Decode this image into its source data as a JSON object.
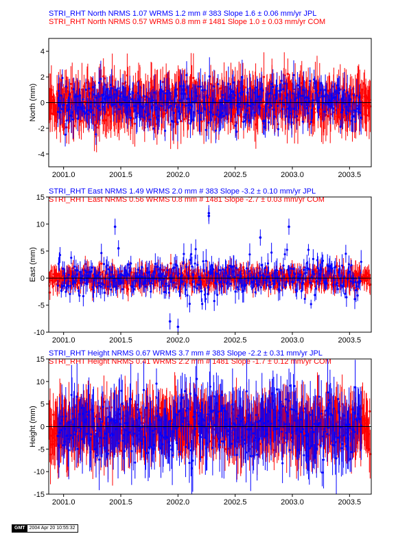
{
  "colors": {
    "jpl": "#0000ff",
    "com": "#ff0000",
    "axis": "#000000"
  },
  "footer": {
    "logo": "GMT",
    "timestamp": "2004 Apr 20 10:55:32"
  },
  "chart_data": [
    {
      "type": "scatter",
      "component": "north",
      "ylabel": "North (mm)",
      "xlim": [
        2000.87,
        2003.69
      ],
      "ylim": [
        -5,
        5
      ],
      "yticks": [
        -4,
        -2,
        0,
        2,
        4
      ],
      "xticks": [
        2001.0,
        2001.5,
        2002.0,
        2002.5,
        2003.0,
        2003.5
      ],
      "xtick_labels": [
        "2001.0",
        "2001.5",
        "2002.0",
        "2002.5",
        "2003.0",
        "2003.5"
      ],
      "zero_line": true,
      "series": [
        {
          "name": "JPL",
          "title": "STRI_RHT North NRMS 1.07 WRMS  1.2 mm # 383 Slope    1.6 ±  0.06 mm/yr JPL",
          "nrms": 1.07,
          "wrms_mm": 1.2,
          "n": 383,
          "slope_mm_per_yr": 1.6,
          "slope_sigma": 0.06,
          "x_start": 2000.95,
          "x_end": 2003.6,
          "sigma_mm": 0.9,
          "error_mm": 1.0
        },
        {
          "name": "COM",
          "title": "STRI_RHT North NRMS 0.57 WRMS  0.8 mm # 1481 Slope    1.0 ±  0.03 mm/yr COM",
          "nrms": 0.57,
          "wrms_mm": 0.8,
          "n": 1481,
          "slope_mm_per_yr": 1.0,
          "slope_sigma": 0.03,
          "x_start": 2000.87,
          "x_end": 2003.68,
          "sigma_mm": 0.8,
          "error_mm": 1.4
        }
      ]
    },
    {
      "type": "scatter",
      "component": "east",
      "ylabel": "East (mm)",
      "xlim": [
        2000.87,
        2003.69
      ],
      "ylim": [
        -10,
        15
      ],
      "yticks": [
        -10,
        -5,
        0,
        5,
        10,
        15
      ],
      "xticks": [
        2001.0,
        2001.5,
        2002.0,
        2002.5,
        2003.0,
        2003.5
      ],
      "xtick_labels": [
        "2001.0",
        "2001.5",
        "2002.0",
        "2002.5",
        "2003.0",
        "2003.5"
      ],
      "zero_line": true,
      "outliers": [
        [
          2001.45,
          9.5
        ],
        [
          2002.27,
          12
        ],
        [
          2002.27,
          11.5
        ],
        [
          2002.72,
          7.5
        ],
        [
          2002.97,
          9.5
        ],
        [
          2001.93,
          -8
        ],
        [
          2002.0,
          -9
        ],
        [
          2001.48,
          5.5
        ]
      ],
      "series": [
        {
          "name": "JPL",
          "title": "STRI_RHT East NRMS 1.49 WRMS  2.0 mm # 383 Slope   -3.2 ±  0.10 mm/yr JPL",
          "nrms": 1.49,
          "wrms_mm": 2.0,
          "n": 383,
          "slope_mm_per_yr": -3.2,
          "slope_sigma": 0.1,
          "x_start": 2000.95,
          "x_end": 2003.6,
          "sigma_mm": 1.8,
          "error_mm": 1.5
        },
        {
          "name": "COM",
          "title": "STRI_RHT East NRMS 0.56 WRMS  0.8 mm # 1481 Slope   -2.7 ±  0.03 mm/yr COM",
          "nrms": 0.56,
          "wrms_mm": 0.8,
          "n": 1481,
          "slope_mm_per_yr": -2.7,
          "slope_sigma": 0.03,
          "x_start": 2000.87,
          "x_end": 2003.68,
          "sigma_mm": 0.8,
          "error_mm": 1.5
        }
      ]
    },
    {
      "type": "scatter",
      "component": "height",
      "ylabel": "Height (mm)",
      "xlim": [
        2000.87,
        2003.69
      ],
      "ylim": [
        -15,
        15
      ],
      "yticks": [
        -15,
        -10,
        -5,
        0,
        5,
        10,
        15
      ],
      "xticks": [
        2001.0,
        2001.5,
        2002.0,
        2002.5,
        2003.0,
        2003.5
      ],
      "xtick_labels": [
        "2001.0",
        "2001.5",
        "2002.0",
        "2002.5",
        "2003.0",
        "2003.5"
      ],
      "zero_line": true,
      "series": [
        {
          "name": "JPL",
          "title": "STRI_RHT Height NRMS 0.67 WRMS  3.7 mm # 383 Slope   -2.2 ±  0.31 mm/yr JPL",
          "nrms": 0.67,
          "wrms_mm": 3.7,
          "n": 383,
          "slope_mm_per_yr": -2.2,
          "slope_sigma": 0.31,
          "x_start": 2000.95,
          "x_end": 2003.6,
          "sigma_mm": 3.5,
          "error_mm": 5.5
        },
        {
          "name": "COM",
          "title": "STRI_RHT Height NRMS 0.41 WRMS  2.2 mm # 1481 Slope   -1.7 ±  0.12 mm/yr COM",
          "nrms": 0.41,
          "wrms_mm": 2.2,
          "n": 1481,
          "slope_mm_per_yr": -1.7,
          "slope_sigma": 0.12,
          "x_start": 2000.87,
          "x_end": 2003.68,
          "sigma_mm": 2.2,
          "error_mm": 5.0
        }
      ]
    }
  ]
}
